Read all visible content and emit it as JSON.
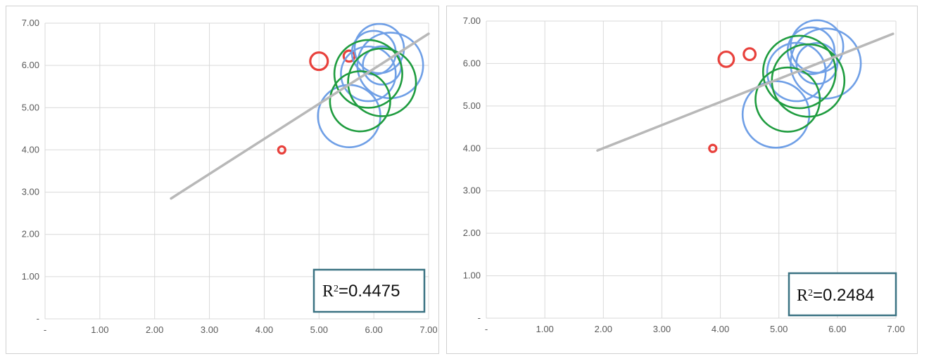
{
  "chart_data": [
    {
      "type": "scatter",
      "xlim": [
        0,
        7
      ],
      "ylim": [
        0,
        7
      ],
      "x_ticks": [
        "-",
        "1.00",
        "2.00",
        "3.00",
        "4.00",
        "5.00",
        "6.00",
        "7.00"
      ],
      "y_ticks": [
        "-",
        "1.00",
        "2.00",
        "3.00",
        "4.00",
        "5.00",
        "6.00",
        "7.00"
      ],
      "grid": "vertical and horizontal",
      "series": [
        {
          "color": "#e8413c",
          "points": [
            {
              "x": 4.32,
              "y": 4.0,
              "r": 0.05
            },
            {
              "x": 5.0,
              "y": 6.1,
              "r": 0.16
            },
            {
              "x": 5.55,
              "y": 6.22,
              "r": 0.1
            }
          ]
        },
        {
          "color": "#6f9fe6",
          "points": [
            {
              "x": 5.55,
              "y": 4.8,
              "r": 0.57
            },
            {
              "x": 5.9,
              "y": 5.8,
              "r": 0.5
            },
            {
              "x": 6.0,
              "y": 6.3,
              "r": 0.4
            },
            {
              "x": 6.1,
              "y": 6.4,
              "r": 0.45
            },
            {
              "x": 6.15,
              "y": 6.0,
              "r": 0.35
            },
            {
              "x": 6.3,
              "y": 6.0,
              "r": 0.6
            }
          ]
        },
        {
          "color": "#1f9c3f",
          "points": [
            {
              "x": 5.75,
              "y": 5.15,
              "r": 0.55
            },
            {
              "x": 5.9,
              "y": 5.8,
              "r": 0.62
            },
            {
              "x": 6.15,
              "y": 5.6,
              "r": 0.62
            }
          ]
        }
      ],
      "trendline": {
        "color": "#b8b8b8",
        "x1": 2.3,
        "y1": 2.85,
        "x2": 7.0,
        "y2": 6.75
      },
      "annotation": {
        "r2_label": "R",
        "r2_sup": "2",
        "r2_value": "=0.4475"
      },
      "legend": "none"
    },
    {
      "type": "scatter",
      "xlim": [
        0,
        7
      ],
      "ylim": [
        0,
        7
      ],
      "x_ticks": [
        "-",
        "1.00",
        "2.00",
        "3.00",
        "4.00",
        "5.00",
        "6.00",
        "7.00"
      ],
      "y_ticks": [
        "-",
        "1.00",
        "2.00",
        "3.00",
        "4.00",
        "5.00",
        "6.00",
        "7.00"
      ],
      "grid": "vertical and horizontal",
      "series": [
        {
          "color": "#e8413c",
          "points": [
            {
              "x": 3.87,
              "y": 4.0,
              "r": 0.05
            },
            {
              "x": 4.1,
              "y": 6.1,
              "r": 0.13
            },
            {
              "x": 4.5,
              "y": 6.22,
              "r": 0.1
            }
          ]
        },
        {
          "color": "#6f9fe6",
          "points": [
            {
              "x": 4.95,
              "y": 4.8,
              "r": 0.57
            },
            {
              "x": 5.3,
              "y": 5.8,
              "r": 0.5
            },
            {
              "x": 5.55,
              "y": 6.3,
              "r": 0.4
            },
            {
              "x": 5.65,
              "y": 6.4,
              "r": 0.45
            },
            {
              "x": 5.65,
              "y": 6.0,
              "r": 0.35
            },
            {
              "x": 5.8,
              "y": 6.0,
              "r": 0.6
            }
          ]
        },
        {
          "color": "#1f9c3f",
          "points": [
            {
              "x": 5.15,
              "y": 5.15,
              "r": 0.55
            },
            {
              "x": 5.35,
              "y": 5.8,
              "r": 0.62
            },
            {
              "x": 5.5,
              "y": 5.6,
              "r": 0.62
            }
          ]
        }
      ],
      "trendline": {
        "color": "#b8b8b8",
        "x1": 1.9,
        "y1": 3.95,
        "x2": 6.95,
        "y2": 6.7
      },
      "annotation": {
        "r2_label": "R",
        "r2_sup": "2",
        "r2_value": "=0.2484"
      },
      "legend": "none"
    }
  ]
}
